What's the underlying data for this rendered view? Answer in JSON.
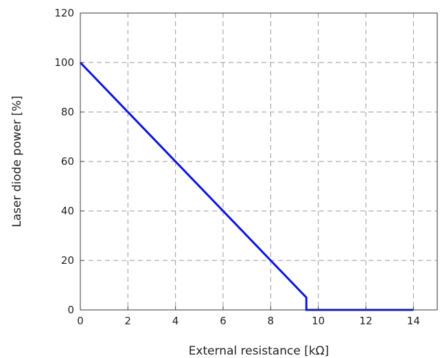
{
  "chart_data": {
    "type": "line",
    "title": "",
    "xlabel": "External resistance [kΩ]",
    "ylabel": "Laser diode power [%]",
    "xlim": [
      0,
      15
    ],
    "ylim": [
      0,
      120
    ],
    "x_ticks": [
      0,
      2,
      4,
      6,
      8,
      10,
      12,
      14
    ],
    "y_ticks": [
      0,
      20,
      40,
      60,
      80,
      100,
      120
    ],
    "grid": true,
    "legend": "none",
    "series": [
      {
        "color": "#0a14e6",
        "x": [
          0,
          9.5,
          9.5,
          9.5,
          14
        ],
        "y": [
          100,
          5,
          5,
          0,
          0
        ]
      }
    ]
  }
}
